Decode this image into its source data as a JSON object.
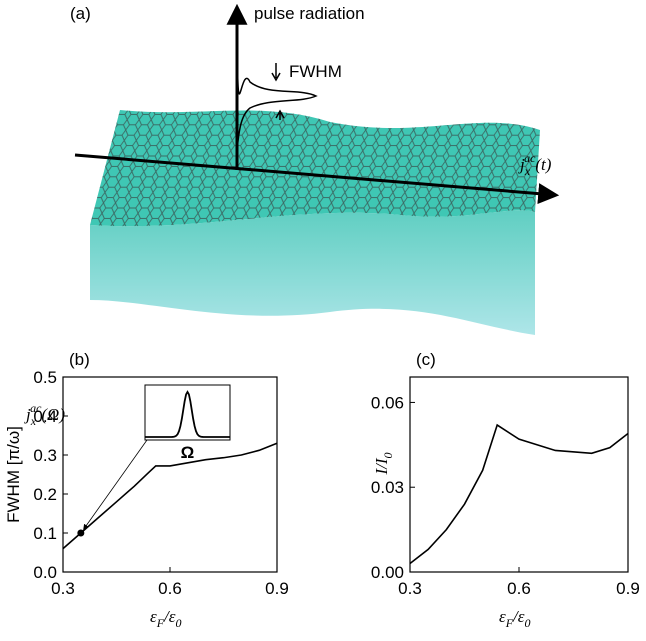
{
  "schematic": {
    "panel": "(a)",
    "pulse_label": "pulse radiation",
    "fwhm_label": "FWHM",
    "current_label": [
      {
        "text": "j"
      },
      {
        "text": "x",
        "sub": true
      },
      {
        "text": "ac",
        "sup": true
      },
      {
        "text": "(t)"
      }
    ]
  },
  "chart_data": [
    {
      "type": "line",
      "panel": "(b)",
      "ylabel": "FWHM [π/ω]",
      "xlabel": [
        {
          "text": "ε"
        },
        {
          "text": "F",
          "sub": true
        },
        {
          "text": "/ε"
        },
        {
          "text": "0",
          "sub": true
        }
      ],
      "x": [
        0.3,
        0.35,
        0.4,
        0.45,
        0.5,
        0.54,
        0.56,
        0.6,
        0.65,
        0.7,
        0.75,
        0.8,
        0.85,
        0.9
      ],
      "values": [
        0.06,
        0.1,
        0.14,
        0.18,
        0.22,
        0.255,
        0.272,
        0.272,
        0.28,
        0.288,
        0.293,
        0.3,
        0.312,
        0.33
      ],
      "color": "#000000",
      "highlight": {
        "x": 0.35,
        "y": 0.1
      },
      "inset_label": [
        {
          "text": "j"
        },
        {
          "text": "x",
          "sub": true
        },
        {
          "text": "ac",
          "sup": true
        },
        {
          "text": "(Ω)"
        }
      ],
      "inset_xlabel": "Ω",
      "xlim": [
        0.3,
        0.9
      ],
      "ylim": [
        0,
        0.5
      ],
      "xticks": [
        0.3,
        0.6,
        0.9
      ],
      "yticks": [
        {
          "value": 0,
          "label": "0.0"
        },
        0.1,
        0.2,
        0.3,
        0.4,
        0.5
      ]
    },
    {
      "type": "line",
      "panel": "(c)",
      "ylabel": [
        {
          "text": "I/I"
        },
        {
          "text": "0",
          "sub": true
        }
      ],
      "xlabel": [
        {
          "text": "ε"
        },
        {
          "text": "F",
          "sub": true
        },
        {
          "text": "/ε"
        },
        {
          "text": "0",
          "sub": true
        }
      ],
      "x": [
        0.3,
        0.35,
        0.4,
        0.45,
        0.5,
        0.54,
        0.6,
        0.7,
        0.8,
        0.85,
        0.9
      ],
      "values": [
        0.003,
        0.008,
        0.015,
        0.024,
        0.036,
        0.052,
        0.047,
        0.043,
        0.042,
        0.044,
        0.049
      ],
      "color": "#000000",
      "xlim": [
        0.3,
        0.9
      ],
      "ylim": [
        0,
        0.069
      ],
      "xticks": [
        0.3,
        0.6,
        0.9
      ],
      "yticks": [
        {
          "value": 0,
          "label": "0.00"
        },
        {
          "value": 0.03,
          "label": "0.03"
        },
        {
          "value": 0.06,
          "label": "0.06"
        }
      ]
    }
  ]
}
